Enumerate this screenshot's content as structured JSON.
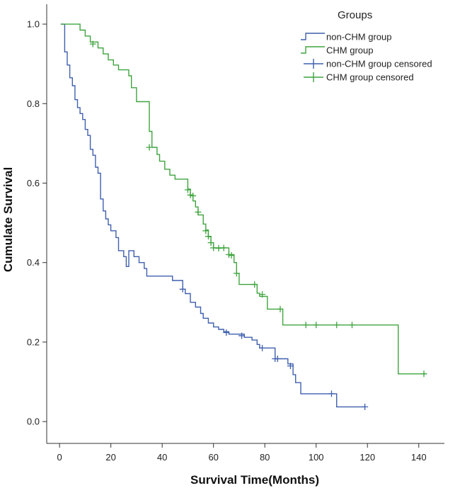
{
  "chart_data": {
    "type": "line",
    "title": "",
    "xlabel": "Survival Time(Months)",
    "ylabel": "Cumulate Survival",
    "xlim": [
      -5,
      150
    ],
    "ylim": [
      -0.055,
      1.05
    ],
    "xticks": [
      0,
      20,
      40,
      60,
      80,
      100,
      120,
      140
    ],
    "yticks": [
      0.0,
      0.2,
      0.4,
      0.6,
      0.8,
      1.0
    ],
    "xtick_labels": [
      "0",
      "20",
      "40",
      "60",
      "80",
      "100",
      "120",
      "140"
    ],
    "ytick_labels": [
      "0.0",
      "0.2",
      "0.4",
      "0.6",
      "0.8",
      "1.0"
    ],
    "grid": false,
    "legend": {
      "title": "Groups",
      "position": "top-right",
      "entries": [
        "non-CHM group",
        "CHM group",
        "non-CHM group censored",
        "CHM group censored"
      ]
    },
    "series": [
      {
        "name": "non-CHM group",
        "color": "#3F5FAE",
        "steps": [
          [
            0.5,
            1.0
          ],
          [
            2,
            0.93
          ],
          [
            3,
            0.897
          ],
          [
            4,
            0.865
          ],
          [
            5,
            0.845
          ],
          [
            6,
            0.81
          ],
          [
            7,
            0.79
          ],
          [
            8,
            0.775
          ],
          [
            9,
            0.76
          ],
          [
            10,
            0.735
          ],
          [
            11,
            0.72
          ],
          [
            12,
            0.685
          ],
          [
            13,
            0.67
          ],
          [
            14,
            0.64
          ],
          [
            15,
            0.625
          ],
          [
            16,
            0.56
          ],
          [
            17,
            0.53
          ],
          [
            18,
            0.51
          ],
          [
            19,
            0.495
          ],
          [
            20,
            0.48
          ],
          [
            22,
            0.463
          ],
          [
            23,
            0.43
          ],
          [
            25,
            0.415
          ],
          [
            26,
            0.39
          ],
          [
            27,
            0.43
          ],
          [
            29,
            0.415
          ],
          [
            31,
            0.4
          ],
          [
            33,
            0.385
          ],
          [
            34,
            0.366
          ],
          [
            44,
            0.355
          ],
          [
            48,
            0.333
          ],
          [
            49,
            0.322
          ],
          [
            51,
            0.3
          ],
          [
            53,
            0.288
          ],
          [
            55,
            0.272
          ],
          [
            56,
            0.26
          ],
          [
            58,
            0.248
          ],
          [
            60,
            0.238
          ],
          [
            62,
            0.232
          ],
          [
            64,
            0.226
          ],
          [
            66,
            0.22
          ],
          [
            72,
            0.212
          ],
          [
            75,
            0.205
          ],
          [
            77,
            0.194
          ],
          [
            78,
            0.185
          ],
          [
            84,
            0.158
          ],
          [
            89,
            0.145
          ],
          [
            91,
            0.118
          ],
          [
            92,
            0.098
          ],
          [
            94,
            0.07
          ],
          [
            105,
            0.07
          ],
          [
            108,
            0.037
          ],
          [
            119,
            0.037
          ]
        ],
        "censored": [
          [
            48,
            0.333
          ],
          [
            65,
            0.224
          ],
          [
            71,
            0.216
          ],
          [
            79,
            0.185
          ],
          [
            84,
            0.158
          ],
          [
            85,
            0.158
          ],
          [
            90,
            0.14
          ],
          [
            106,
            0.07
          ],
          [
            119,
            0.037
          ]
        ]
      },
      {
        "name": "CHM group",
        "color": "#3FA43F",
        "steps": [
          [
            0.5,
            1.0
          ],
          [
            8,
            0.985
          ],
          [
            10,
            0.97
          ],
          [
            12,
            0.955
          ],
          [
            15,
            0.94
          ],
          [
            17,
            0.925
          ],
          [
            19,
            0.91
          ],
          [
            21,
            0.897
          ],
          [
            23,
            0.885
          ],
          [
            27,
            0.87
          ],
          [
            28,
            0.84
          ],
          [
            30,
            0.805
          ],
          [
            35,
            0.73
          ],
          [
            36,
            0.69
          ],
          [
            38,
            0.672
          ],
          [
            39,
            0.655
          ],
          [
            41,
            0.635
          ],
          [
            43,
            0.62
          ],
          [
            45,
            0.61
          ],
          [
            50,
            0.585
          ],
          [
            51,
            0.57
          ],
          [
            52,
            0.555
          ],
          [
            53,
            0.54
          ],
          [
            54,
            0.52
          ],
          [
            56,
            0.497
          ],
          [
            57,
            0.482
          ],
          [
            58,
            0.465
          ],
          [
            59,
            0.45
          ],
          [
            60,
            0.437
          ],
          [
            66,
            0.42
          ],
          [
            68,
            0.4
          ],
          [
            69,
            0.373
          ],
          [
            70,
            0.345
          ],
          [
            77,
            0.323
          ],
          [
            78,
            0.315
          ],
          [
            81,
            0.283
          ],
          [
            87,
            0.243
          ],
          [
            132,
            0.12
          ],
          [
            143,
            0.12
          ]
        ],
        "censored": [
          [
            13,
            0.95
          ],
          [
            35,
            0.69
          ],
          [
            50,
            0.583
          ],
          [
            51,
            0.57
          ],
          [
            52,
            0.568
          ],
          [
            54,
            0.527
          ],
          [
            57,
            0.48
          ],
          [
            58,
            0.466
          ],
          [
            59,
            0.45
          ],
          [
            60,
            0.437
          ],
          [
            62,
            0.436
          ],
          [
            64,
            0.437
          ],
          [
            66,
            0.42
          ],
          [
            67,
            0.418
          ],
          [
            69,
            0.373
          ],
          [
            76,
            0.345
          ],
          [
            79,
            0.32
          ],
          [
            86,
            0.283
          ],
          [
            96,
            0.243
          ],
          [
            100,
            0.243
          ],
          [
            108,
            0.243
          ],
          [
            114,
            0.243
          ],
          [
            142,
            0.12
          ]
        ]
      }
    ]
  }
}
